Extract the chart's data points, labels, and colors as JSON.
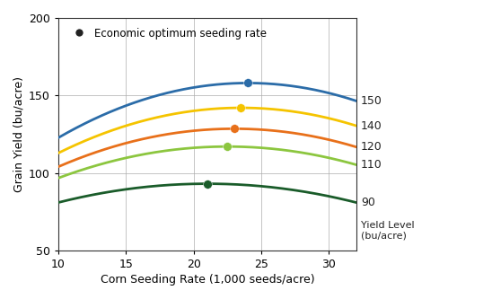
{
  "yield_levels": [
    150,
    140,
    120,
    110,
    90
  ],
  "colors": [
    "#2b6ca8",
    "#f5c400",
    "#e8701a",
    "#8cc63f",
    "#1a5c2a"
  ],
  "curve_params": [
    {
      "a": -0.18,
      "b": 24.0,
      "c": 158.0,
      "dot_x": 24.0,
      "dot_y": 158.0
    },
    {
      "a": -0.16,
      "b": 23.5,
      "c": 142.0,
      "dot_x": 23.5,
      "dot_y": 142.0
    },
    {
      "a": -0.145,
      "b": 23.0,
      "c": 128.5,
      "dot_x": 23.0,
      "dot_y": 128.5
    },
    {
      "a": -0.13,
      "b": 22.5,
      "c": 117.0,
      "dot_x": 22.5,
      "dot_y": 117.0
    },
    {
      "a": -0.1,
      "b": 21.0,
      "c": 93.0,
      "dot_x": 21.0,
      "dot_y": 93.0
    }
  ],
  "x_start": 10,
  "x_end": 32,
  "xlim": [
    10,
    32
  ],
  "ylim": [
    50,
    200
  ],
  "xticks": [
    10,
    15,
    20,
    25,
    30
  ],
  "yticks": [
    50,
    100,
    150,
    200
  ],
  "xlabel": "Corn Seeding Rate (1,000 seeds/acre)",
  "ylabel": "Grain Yield (bu/acre)",
  "right_labels": [
    {
      "text": "150"
    },
    {
      "text": "140"
    },
    {
      "text": "120"
    },
    {
      "text": "110"
    },
    {
      "text": "90"
    }
  ],
  "right_axis_title": "Yield Level\n(bu/acre)",
  "legend_text": "Economic optimum seeding rate",
  "legend_dot_color": "#222222",
  "background_color": "#ffffff",
  "grid_color": "#aaaaaa",
  "figsize": [
    5.48,
    3.33
  ],
  "dpi": 100
}
